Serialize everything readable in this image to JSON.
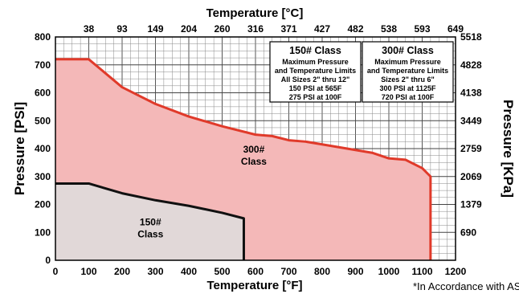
{
  "chart_data": {
    "type": "area",
    "title": "",
    "xlabel": "Temperature [°F]",
    "ylabel": "Pressure [PSI]",
    "top_axis_label": "Temperature [°C]",
    "right_axis_label": "Pressure [KPa]",
    "xlim": [
      0,
      1200
    ],
    "ylim": [
      0,
      800
    ],
    "grid": true,
    "x_ticks": [
      "0",
      "100",
      "200",
      "300",
      "400",
      "500",
      "600",
      "700",
      "800",
      "900",
      "1000",
      "1100",
      "1200"
    ],
    "y_ticks": [
      "0",
      "100",
      "200",
      "300",
      "400",
      "500",
      "600",
      "700",
      "800"
    ],
    "top_ticks": [
      {
        "x": 100,
        "label": "38"
      },
      {
        "x": 200,
        "label": "93"
      },
      {
        "x": 300,
        "label": "149"
      },
      {
        "x": 400,
        "label": "204"
      },
      {
        "x": 500,
        "label": "260"
      },
      {
        "x": 600,
        "label": "316"
      },
      {
        "x": 700,
        "label": "371"
      },
      {
        "x": 800,
        "label": "427"
      },
      {
        "x": 900,
        "label": "482"
      },
      {
        "x": 1000,
        "label": "538"
      },
      {
        "x": 1100,
        "label": "593"
      },
      {
        "x": 1200,
        "label": "649"
      }
    ],
    "right_ticks": [
      {
        "y": 100,
        "label": "690"
      },
      {
        "y": 200,
        "label": "1379"
      },
      {
        "y": 300,
        "label": "2069"
      },
      {
        "y": 400,
        "label": "2759"
      },
      {
        "y": 500,
        "label": "3449"
      },
      {
        "y": 600,
        "label": "4138"
      },
      {
        "y": 700,
        "label": "4828"
      },
      {
        "y": 800,
        "label": "5518"
      }
    ],
    "series": [
      {
        "name": "300# Class",
        "color": "#e03a2a",
        "fill": "#f4b8b8",
        "x": [
          0,
          100,
          200,
          300,
          400,
          500,
          600,
          650,
          700,
          750,
          800,
          850,
          900,
          950,
          1000,
          1050,
          1100,
          1125
        ],
        "y": [
          720,
          720,
          620,
          560,
          515,
          480,
          450,
          445,
          430,
          425,
          415,
          405,
          395,
          385,
          365,
          360,
          330,
          300
        ]
      },
      {
        "name": "150# Class",
        "color": "#111111",
        "fill": "#dddddd",
        "x": [
          0,
          100,
          200,
          300,
          400,
          500,
          565
        ],
        "y": [
          275,
          275,
          240,
          215,
          195,
          170,
          150
        ]
      }
    ],
    "region_labels": [
      {
        "line1": "300#",
        "line2": "Class",
        "x": 595,
        "y": 385
      },
      {
        "line1": "150#",
        "line2": "Class",
        "x": 285,
        "y": 125
      }
    ],
    "info_boxes": [
      {
        "heading": "150# Class",
        "heading_color": "#000000",
        "lines": [
          "Maximum Pressure",
          "and Temperature Limits",
          "All Sizes 2\" thru 12\"",
          "150 PSI at 565F",
          "275 PSI at 100F"
        ]
      },
      {
        "heading": "300# Class",
        "heading_color": "#e03a2a",
        "lines": [
          "Maximum Pressure",
          "and Temperature Limits",
          "Sizes 2\" thru 6\"",
          "300 PSI at 1125F",
          "720 PSI at 100F"
        ]
      }
    ],
    "footnote": "*In Accordance with AS"
  }
}
